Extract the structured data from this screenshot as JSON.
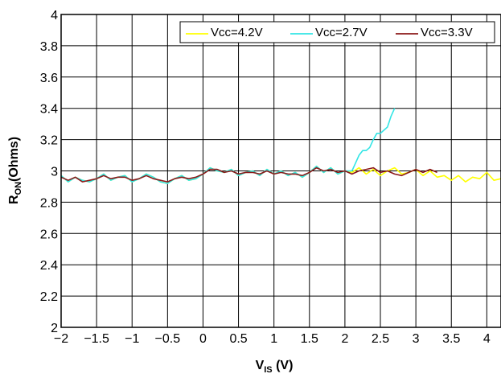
{
  "chart_data": {
    "type": "line",
    "title": "",
    "xlabel": {
      "main": "V",
      "sub": "IS",
      "tail": " (V)"
    },
    "ylabel": {
      "main": "R",
      "sub": "ON",
      "tail": "(Ohms)"
    },
    "xlim": [
      -2,
      4.2
    ],
    "ylim": [
      2,
      4
    ],
    "x_ticks": [
      -2,
      -1.5,
      -1,
      -0.5,
      0,
      0.5,
      1,
      1.5,
      2,
      2.5,
      3,
      3.5,
      4
    ],
    "x_tick_labels": [
      "−2",
      "−1.5",
      "−1",
      "−0.5",
      "0",
      "0.5",
      "1",
      "1.5",
      "2",
      "2.5",
      "3",
      "3.5",
      "4"
    ],
    "y_ticks": [
      2,
      2.2,
      2.4,
      2.6,
      2.8,
      3,
      3.2,
      3.4,
      3.6,
      3.8,
      4
    ],
    "y_tick_labels": [
      "2",
      "2.2",
      "2.4",
      "2.6",
      "2.8",
      "3",
      "3.2",
      "3.4",
      "3.6",
      "3.8",
      "4"
    ],
    "grid": true,
    "legend_position": "top-right",
    "series": [
      {
        "name": "Vcc=4.2V",
        "color": "#ffff00",
        "x": [
          -2.0,
          -1.9,
          -1.8,
          -1.7,
          -1.6,
          -1.5,
          -1.4,
          -1.3,
          -1.2,
          -1.1,
          -1.0,
          -0.9,
          -0.8,
          -0.7,
          -0.6,
          -0.5,
          -0.4,
          -0.3,
          -0.2,
          -0.1,
          0.0,
          0.1,
          0.2,
          0.3,
          0.4,
          0.5,
          0.6,
          0.7,
          0.8,
          0.9,
          1.0,
          1.1,
          1.2,
          1.3,
          1.4,
          1.5,
          1.6,
          1.7,
          1.8,
          1.9,
          2.0,
          2.1,
          2.2,
          2.3,
          2.4,
          2.5,
          2.6,
          2.7,
          2.8,
          2.9,
          3.0,
          3.1,
          3.2,
          3.3,
          3.4,
          3.5,
          3.6,
          3.7,
          3.8,
          3.9,
          4.0,
          4.1,
          4.2
        ],
        "values": [
          2.97,
          2.93,
          2.96,
          2.94,
          2.93,
          2.95,
          2.98,
          2.94,
          2.96,
          2.97,
          2.93,
          2.95,
          2.98,
          2.96,
          2.93,
          2.92,
          2.95,
          2.97,
          2.94,
          2.95,
          2.98,
          3.02,
          3.0,
          2.99,
          3.01,
          2.97,
          2.99,
          3.0,
          2.97,
          3.01,
          2.98,
          3.0,
          2.97,
          2.99,
          2.96,
          2.99,
          3.03,
          2.99,
          3.02,
          2.98,
          3.0,
          2.99,
          3.02,
          2.98,
          3.01,
          2.97,
          3.0,
          3.02,
          2.98,
          2.99,
          3.01,
          2.97,
          3.0,
          2.96,
          2.97,
          2.94,
          2.97,
          2.93,
          2.96,
          2.95,
          2.99,
          2.94,
          2.95
        ]
      },
      {
        "name": "Vcc=2.7V",
        "color": "#33e5e5",
        "x": [
          -2.0,
          -1.9,
          -1.8,
          -1.7,
          -1.6,
          -1.5,
          -1.4,
          -1.3,
          -1.2,
          -1.1,
          -1.0,
          -0.9,
          -0.8,
          -0.7,
          -0.6,
          -0.5,
          -0.4,
          -0.3,
          -0.2,
          -0.1,
          0.0,
          0.1,
          0.2,
          0.3,
          0.4,
          0.5,
          0.6,
          0.7,
          0.8,
          0.9,
          1.0,
          1.1,
          1.2,
          1.3,
          1.4,
          1.5,
          1.6,
          1.7,
          1.8,
          1.9,
          2.0,
          2.1,
          2.15,
          2.2,
          2.25,
          2.3,
          2.35,
          2.4,
          2.45,
          2.5,
          2.55,
          2.6,
          2.65,
          2.7
        ],
        "values": [
          2.97,
          2.93,
          2.96,
          2.94,
          2.93,
          2.95,
          2.98,
          2.94,
          2.96,
          2.97,
          2.93,
          2.95,
          2.98,
          2.96,
          2.93,
          2.92,
          2.95,
          2.97,
          2.94,
          2.95,
          2.98,
          3.02,
          3.0,
          2.99,
          3.01,
          2.97,
          2.99,
          3.0,
          2.97,
          3.01,
          2.98,
          3.0,
          2.97,
          2.99,
          2.96,
          2.99,
          3.03,
          2.99,
          3.02,
          2.98,
          3.0,
          3.0,
          3.05,
          3.1,
          3.13,
          3.13,
          3.15,
          3.2,
          3.24,
          3.24,
          3.26,
          3.28,
          3.35,
          3.4
        ]
      },
      {
        "name": "Vcc=3.3V",
        "color": "#8b1a1a",
        "x": [
          -2.0,
          -1.9,
          -1.8,
          -1.7,
          -1.6,
          -1.5,
          -1.4,
          -1.3,
          -1.2,
          -1.1,
          -1.0,
          -0.9,
          -0.8,
          -0.7,
          -0.6,
          -0.5,
          -0.4,
          -0.3,
          -0.2,
          -0.1,
          0.0,
          0.1,
          0.2,
          0.3,
          0.4,
          0.5,
          0.6,
          0.7,
          0.8,
          0.9,
          1.0,
          1.1,
          1.2,
          1.3,
          1.4,
          1.5,
          1.6,
          1.7,
          1.8,
          1.9,
          2.0,
          2.1,
          2.2,
          2.3,
          2.4,
          2.5,
          2.6,
          2.7,
          2.8,
          2.9,
          3.0,
          3.1,
          3.2,
          3.3
        ],
        "values": [
          2.96,
          2.94,
          2.96,
          2.93,
          2.94,
          2.95,
          2.97,
          2.95,
          2.96,
          2.96,
          2.94,
          2.95,
          2.97,
          2.95,
          2.94,
          2.93,
          2.95,
          2.96,
          2.95,
          2.96,
          2.98,
          3.01,
          3.01,
          2.99,
          3.0,
          2.98,
          2.99,
          2.99,
          2.98,
          3.0,
          2.98,
          2.99,
          2.98,
          2.98,
          2.97,
          2.99,
          3.02,
          3.0,
          3.01,
          2.99,
          3.0,
          2.98,
          3.0,
          3.01,
          3.02,
          2.99,
          3.0,
          2.98,
          2.97,
          2.99,
          3.01,
          2.99,
          3.01,
          2.99
        ]
      }
    ]
  }
}
